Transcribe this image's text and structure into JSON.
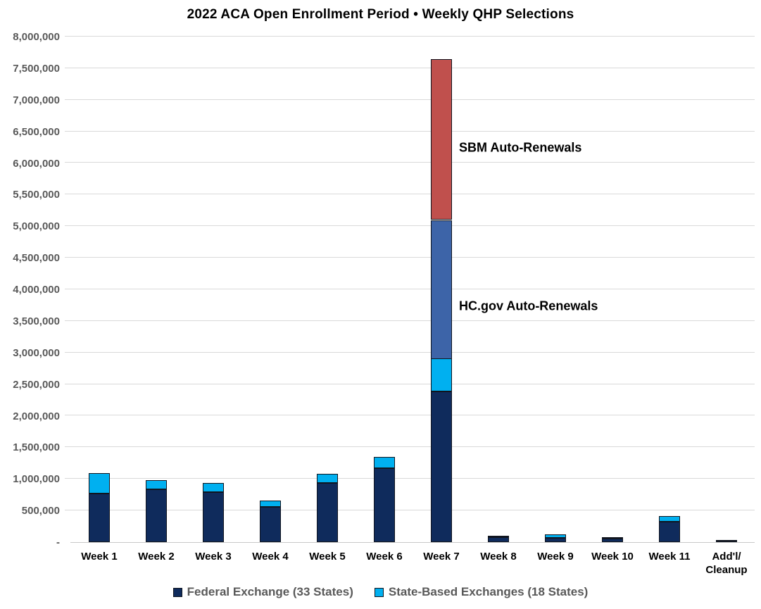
{
  "title": "2022 ACA Open Enrollment Period • Weekly QHP Selections",
  "chart_data": {
    "type": "bar",
    "stacked": true,
    "title": "2022 ACA Open Enrollment Period • Weekly QHP Selections",
    "categories": [
      "Week 1",
      "Week 2",
      "Week 3",
      "Week 4",
      "Week 5",
      "Week 6",
      "Week 7",
      "Week 8",
      "Week 9",
      "Week 10",
      "Week 11",
      "Add'l/\nCleanup"
    ],
    "series": [
      {
        "name": "Federal Exchange (33 States)",
        "color": "#0F2B5C",
        "in_legend": true,
        "values": [
          770000,
          835000,
          790000,
          560000,
          935000,
          1170000,
          2380000,
          75000,
          70000,
          55000,
          320000,
          10000
        ]
      },
      {
        "name": "State-Based Exchanges (18 States)",
        "color": "#00B0F0",
        "in_legend": true,
        "values": [
          320000,
          140000,
          145000,
          100000,
          145000,
          175000,
          520000,
          15000,
          55000,
          20000,
          90000,
          15000
        ]
      },
      {
        "name": "HC.gov Auto-Renewals",
        "color": "#3D64A8",
        "in_legend": false,
        "values": [
          0,
          0,
          0,
          0,
          0,
          0,
          2200000,
          0,
          0,
          0,
          0,
          0
        ]
      },
      {
        "name": "SBM Auto-Renewals",
        "color": "#C0504D",
        "in_legend": false,
        "values": [
          0,
          0,
          0,
          0,
          0,
          0,
          2545000,
          0,
          0,
          0,
          0,
          0
        ]
      }
    ],
    "annotations": [
      {
        "text": "SBM Auto-Renewals",
        "x": 652,
        "y": 210
      },
      {
        "text": "HC.gov Auto-Renewals",
        "x": 652,
        "y": 435
      }
    ],
    "ylim": [
      0,
      8000000
    ],
    "ytick_step": 500000,
    "yticks": [
      {
        "value": 0,
        "label": "-"
      },
      {
        "value": 500000,
        "label": "500,000"
      },
      {
        "value": 1000000,
        "label": "1,000,000"
      },
      {
        "value": 1500000,
        "label": "1,500,000"
      },
      {
        "value": 2000000,
        "label": "2,000,000"
      },
      {
        "value": 2500000,
        "label": "2,500,000"
      },
      {
        "value": 3000000,
        "label": "3,000,000"
      },
      {
        "value": 3500000,
        "label": "3,500,000"
      },
      {
        "value": 4000000,
        "label": "4,000,000"
      },
      {
        "value": 4500000,
        "label": "4,500,000"
      },
      {
        "value": 5000000,
        "label": "5,000,000"
      },
      {
        "value": 5500000,
        "label": "5,500,000"
      },
      {
        "value": 6000000,
        "label": "6,000,000"
      },
      {
        "value": 6500000,
        "label": "6,500,000"
      },
      {
        "value": 7000000,
        "label": "7,000,000"
      },
      {
        "value": 7500000,
        "label": "7,500,000"
      },
      {
        "value": 8000000,
        "label": "8,000,000"
      }
    ],
    "grid": true,
    "legend_position": "bottom",
    "colors": {
      "grid": "#D9D9D9",
      "axis_text": "#595959",
      "x_label_text": "#000000",
      "bar_border": "#10151f",
      "background": "#FFFFFF"
    }
  }
}
